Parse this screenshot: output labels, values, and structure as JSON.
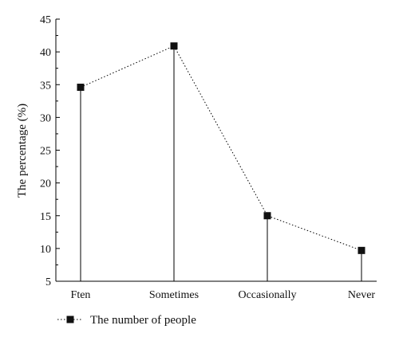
{
  "chart_data": {
    "type": "line",
    "categories": [
      "Ften",
      "Sometimes",
      "Occasionally",
      "Never"
    ],
    "series": [
      {
        "name": "The number of people",
        "values": [
          34.6,
          40.9,
          15.0,
          9.7
        ]
      }
    ],
    "ylabel": "The percentage (%)",
    "xlabel": "",
    "ylim": [
      5,
      45
    ],
    "yticks": [
      5,
      10,
      15,
      20,
      25,
      30,
      35,
      40,
      45
    ],
    "stems": true,
    "grid": false,
    "legend": "bottom-left",
    "colors": {
      "series": "#111111"
    }
  }
}
